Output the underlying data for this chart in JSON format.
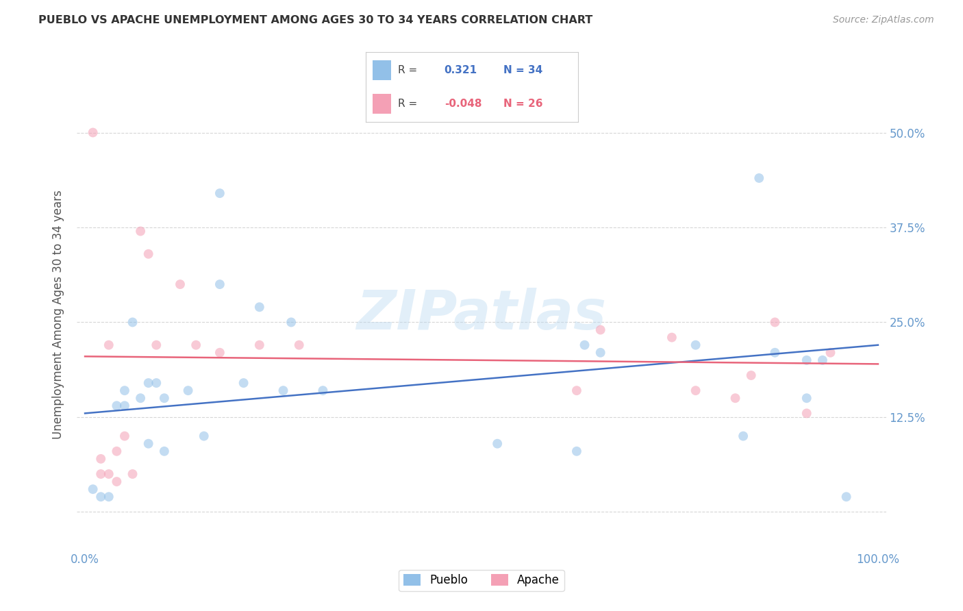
{
  "title": "PUEBLO VS APACHE UNEMPLOYMENT AMONG AGES 30 TO 34 YEARS CORRELATION CHART",
  "source": "Source: ZipAtlas.com",
  "ylabel": "Unemployment Among Ages 30 to 34 years",
  "xlim": [
    -1,
    101
  ],
  "ylim": [
    -5,
    57
  ],
  "yticks": [
    0,
    12.5,
    25,
    37.5,
    50
  ],
  "ytick_labels": [
    "",
    "12.5%",
    "25.0%",
    "37.5%",
    "50.0%"
  ],
  "xtick_positions": [
    0,
    100
  ],
  "xtick_labels": [
    "0.0%",
    "100.0%"
  ],
  "pueblo_color": "#92C0E8",
  "apache_color": "#F4A0B5",
  "pueblo_line_color": "#4472C4",
  "apache_line_color": "#E8647A",
  "pueblo_x": [
    1,
    2,
    3,
    4,
    5,
    5,
    6,
    7,
    8,
    8,
    9,
    10,
    10,
    13,
    15,
    17,
    17,
    20,
    22,
    25,
    26,
    30,
    52,
    62,
    63,
    65,
    77,
    83,
    85,
    87,
    91,
    91,
    93,
    96
  ],
  "pueblo_y": [
    3,
    2,
    2,
    14,
    16,
    14,
    25,
    15,
    9,
    17,
    17,
    15,
    8,
    16,
    10,
    42,
    30,
    17,
    27,
    16,
    25,
    16,
    9,
    8,
    22,
    21,
    22,
    10,
    44,
    21,
    20,
    15,
    20,
    2
  ],
  "apache_x": [
    1,
    2,
    2,
    3,
    3,
    4,
    4,
    5,
    6,
    7,
    8,
    9,
    12,
    14,
    17,
    22,
    27,
    62,
    65,
    74,
    77,
    82,
    84,
    87,
    91,
    94
  ],
  "apache_y": [
    50,
    5,
    7,
    22,
    5,
    8,
    4,
    10,
    5,
    37,
    34,
    22,
    30,
    22,
    21,
    22,
    22,
    16,
    24,
    23,
    16,
    15,
    18,
    25,
    13,
    21
  ],
  "pueblo_trend": [
    13.0,
    22.0
  ],
  "apache_trend": [
    20.5,
    19.5
  ],
  "watermark_text": "ZIPatlas",
  "marker_size": 100,
  "marker_alpha": 0.55,
  "background_color": "#FFFFFF",
  "grid_color": "#BBBBBB",
  "title_color": "#333333",
  "tick_color": "#6699CC",
  "ylabel_color": "#555555",
  "source_color": "#999999"
}
